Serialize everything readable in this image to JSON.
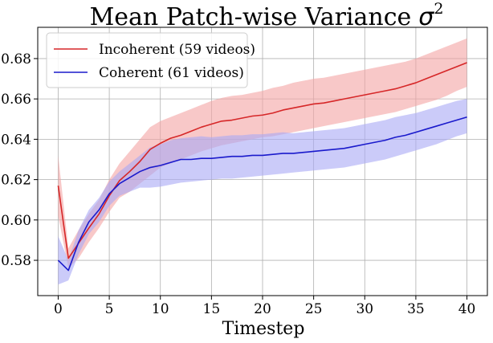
{
  "chart_data": {
    "type": "line",
    "title": "Mean Patch-wise Variance",
    "title_math": "σ",
    "title_math_sup": "2",
    "xlabel": "Timestep",
    "ylabel": "",
    "xlim": [
      -2,
      42
    ],
    "ylim": [
      0.5625,
      0.6955
    ],
    "xticks": [
      0,
      5,
      10,
      15,
      20,
      25,
      30,
      35,
      40
    ],
    "xtick_labels": [
      "0",
      "5",
      "10",
      "15",
      "20",
      "25",
      "30",
      "35",
      "40"
    ],
    "yticks": [
      0.58,
      0.6,
      0.62,
      0.64,
      0.66,
      0.68
    ],
    "ytick_labels": [
      "0.58",
      "0.60",
      "0.62",
      "0.64",
      "0.66",
      "0.68"
    ],
    "grid": true,
    "legend_position": "top-left",
    "x": [
      0,
      1,
      2,
      3,
      4,
      5,
      6,
      7,
      8,
      9,
      10,
      11,
      12,
      13,
      14,
      15,
      16,
      17,
      18,
      19,
      20,
      21,
      22,
      23,
      24,
      25,
      26,
      27,
      28,
      29,
      30,
      31,
      32,
      33,
      34,
      35,
      36,
      37,
      38,
      39,
      40
    ],
    "series": [
      {
        "name": "Incoherent (59 videos)",
        "color": "#d62728",
        "band_color": "#f4a3a3",
        "values": [
          0.617,
          0.581,
          0.5885,
          0.596,
          0.603,
          0.612,
          0.6195,
          0.624,
          0.629,
          0.635,
          0.638,
          0.6405,
          0.642,
          0.644,
          0.646,
          0.6475,
          0.649,
          0.6495,
          0.6505,
          0.6515,
          0.652,
          0.653,
          0.6545,
          0.6555,
          0.6565,
          0.6575,
          0.658,
          0.659,
          0.66,
          0.661,
          0.662,
          0.663,
          0.664,
          0.665,
          0.6665,
          0.668,
          0.67,
          0.672,
          0.674,
          0.676,
          0.678
        ],
        "lower": [
          0.602,
          0.576,
          0.581,
          0.589,
          0.596,
          0.604,
          0.611,
          0.614,
          0.618,
          0.622,
          0.626,
          0.628,
          0.63,
          0.632,
          0.634,
          0.6355,
          0.637,
          0.638,
          0.639,
          0.64,
          0.641,
          0.6415,
          0.6425,
          0.6435,
          0.6445,
          0.6455,
          0.6465,
          0.6475,
          0.6485,
          0.6495,
          0.6505,
          0.6515,
          0.6525,
          0.6535,
          0.655,
          0.6565,
          0.658,
          0.6595,
          0.6615,
          0.664,
          0.666
        ],
        "upper": [
          0.632,
          0.586,
          0.595,
          0.603,
          0.61,
          0.62,
          0.628,
          0.634,
          0.64,
          0.646,
          0.649,
          0.651,
          0.653,
          0.655,
          0.657,
          0.659,
          0.6605,
          0.6615,
          0.662,
          0.663,
          0.664,
          0.6655,
          0.6665,
          0.668,
          0.669,
          0.67,
          0.6705,
          0.6715,
          0.6725,
          0.6735,
          0.6745,
          0.6755,
          0.6765,
          0.6775,
          0.6785,
          0.68,
          0.682,
          0.684,
          0.686,
          0.688,
          0.69
        ]
      },
      {
        "name": "Coherent (61 videos)",
        "color": "#1a1acc",
        "band_color": "#a8a8f5",
        "values": [
          0.58,
          0.575,
          0.589,
          0.599,
          0.605,
          0.613,
          0.618,
          0.621,
          0.624,
          0.626,
          0.627,
          0.6285,
          0.63,
          0.63,
          0.6305,
          0.6305,
          0.631,
          0.6315,
          0.6315,
          0.632,
          0.632,
          0.6325,
          0.633,
          0.633,
          0.6335,
          0.634,
          0.6345,
          0.635,
          0.6355,
          0.6365,
          0.6375,
          0.6385,
          0.6395,
          0.641,
          0.642,
          0.6435,
          0.645,
          0.6465,
          0.648,
          0.6495,
          0.651
        ],
        "lower": [
          0.568,
          0.57,
          0.583,
          0.593,
          0.599,
          0.607,
          0.612,
          0.614,
          0.616,
          0.616,
          0.6165,
          0.6175,
          0.6185,
          0.619,
          0.6195,
          0.62,
          0.6205,
          0.6205,
          0.621,
          0.6215,
          0.622,
          0.6225,
          0.623,
          0.6235,
          0.624,
          0.6245,
          0.625,
          0.6255,
          0.626,
          0.627,
          0.628,
          0.629,
          0.63,
          0.6315,
          0.633,
          0.6345,
          0.636,
          0.6375,
          0.6395,
          0.6415,
          0.643
        ],
        "upper": [
          0.592,
          0.58,
          0.595,
          0.605,
          0.611,
          0.619,
          0.624,
          0.628,
          0.632,
          0.636,
          0.6375,
          0.6395,
          0.6405,
          0.641,
          0.6415,
          0.641,
          0.6415,
          0.642,
          0.642,
          0.6425,
          0.6425,
          0.643,
          0.6435,
          0.643,
          0.6435,
          0.644,
          0.6445,
          0.645,
          0.6455,
          0.6465,
          0.6475,
          0.6485,
          0.6495,
          0.651,
          0.652,
          0.653,
          0.6545,
          0.656,
          0.6575,
          0.659,
          0.66
        ]
      }
    ]
  }
}
